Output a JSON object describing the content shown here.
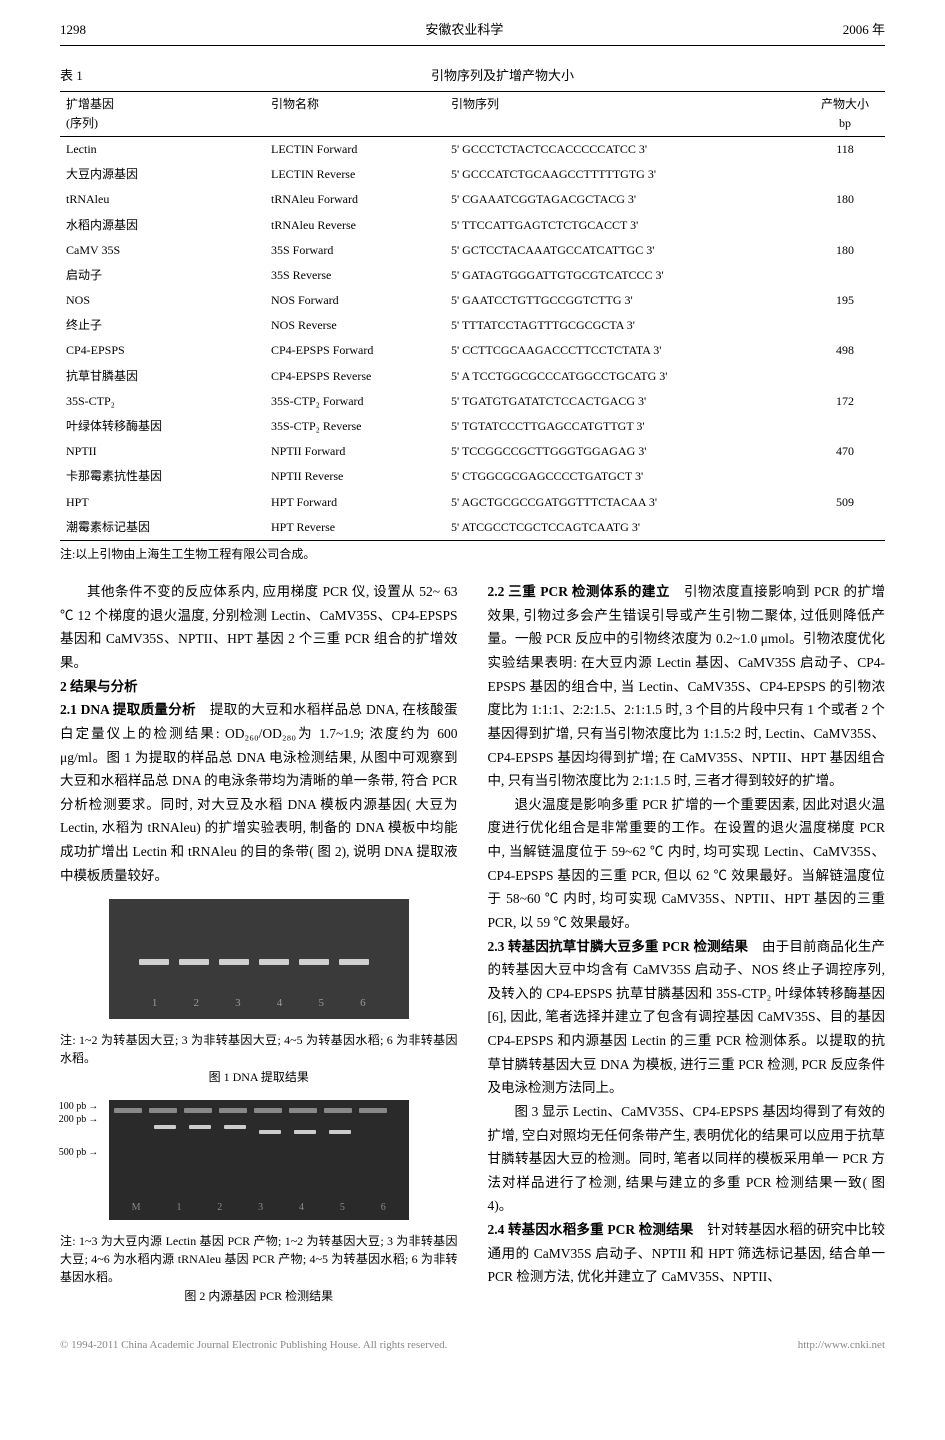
{
  "header": {
    "page_num": "1298",
    "journal": "安徽农业科学",
    "year": "2006 年"
  },
  "table1": {
    "label": "表 1",
    "caption": "引物序列及扩增产物大小",
    "columns": {
      "gene": "扩增基因\n(序列)",
      "primer": "引物名称",
      "seq": "引物序列",
      "size": "产物大小\nbp"
    },
    "rows": [
      {
        "gene": "Lectin",
        "primer": "LECTIN Forward",
        "seq": "5' GCCCTCTACTCCACCCCCATCC 3'",
        "size": "118"
      },
      {
        "gene": "大豆内源基因",
        "primer": "LECTIN Reverse",
        "seq": "5' GCCCATCTGCAAGCCTTTTTGTG 3'",
        "size": ""
      },
      {
        "gene": "tRNAleu",
        "primer": "tRNAleu Forward",
        "seq": "5' CGAAATCGGTAGACGCTACG 3'",
        "size": "180"
      },
      {
        "gene": "水稻内源基因",
        "primer": "tRNAleu Reverse",
        "seq": "5' TTCCATTGAGTCTCTGCACCT 3'",
        "size": ""
      },
      {
        "gene": "CaMV 35S",
        "primer": "35S Forward",
        "seq": "5' GCTCCTACAAATGCCATCATTGC 3'",
        "size": "180"
      },
      {
        "gene": "启动子",
        "primer": "35S Reverse",
        "seq": "5' GATAGTGGGATTGTGCGTCATCCC 3'",
        "size": ""
      },
      {
        "gene": "NOS",
        "primer": "NOS Forward",
        "seq": "5' GAATCCTGTTGCCGGTCTTG 3'",
        "size": "195"
      },
      {
        "gene": "终止子",
        "primer": "NOS Reverse",
        "seq": "5' TTTATCCTAGTTTGCGCGCTA 3'",
        "size": ""
      },
      {
        "gene": "CP4-EPSPS",
        "primer": "CP4-EPSPS Forward",
        "seq": "5' CCTTCGCAAGACCCTTCCTCTATA 3'",
        "size": "498"
      },
      {
        "gene": "抗草甘膦基因",
        "primer": "CP4-EPSPS Reverse",
        "seq": "5' A TCCTGGCGCCCATGGCCTGCATG 3'",
        "size": ""
      },
      {
        "gene": "35S-CTP₂",
        "primer": "35S-CTP₂ Forward",
        "seq": "5' TGATGTGATATCTCCACTGACG 3'",
        "size": "172"
      },
      {
        "gene": "叶绿体转移酶基因",
        "primer": "35S-CTP₂ Reverse",
        "seq": "5' TGTATCCCTTGAGCCATGTTGT 3'",
        "size": ""
      },
      {
        "gene": "NPTII",
        "primer": "NPTII Forward",
        "seq": "5' TCCGGCCGCTTGGGTGGAGAG 3'",
        "size": "470"
      },
      {
        "gene": "卡那霉素抗性基因",
        "primer": "NPTII Reverse",
        "seq": "5' CTGGCGCGAGCCCCTGATGCT 3'",
        "size": ""
      },
      {
        "gene": "HPT",
        "primer": "HPT Forward",
        "seq": "5' AGCTGCGCCGATGGTTTCTACAA 3'",
        "size": "509"
      },
      {
        "gene": "潮霉素标记基因",
        "primer": "HPT Reverse",
        "seq": "5' ATCGCCTCGCTCCAGTCAATG 3'",
        "size": ""
      }
    ],
    "note": "注:以上引物由上海生工生物工程有限公司合成。"
  },
  "left_col": {
    "p1": "其他条件不变的反应体系内, 应用梯度 PCR 仪, 设置从 52~ 63 ℃ 12 个梯度的退火温度, 分别检测 Lectin、CaMV35S、CP4-EPSPS 基因和 CaMV35S、NPTII、HPT 基因 2 个三重 PCR 组合的扩增效果。",
    "sec2": "2  结果与分析",
    "sec21_title": "2.1  DNA 提取质量分析",
    "sec21_body": "提取的大豆和水稻样品总 DNA, 在核酸蛋白定量仪上的检测结果: OD₂₆₀/OD₂₈₀为 1.7~1.9; 浓度约为 600 μg/ml。图 1 为提取的样品总 DNA 电泳检测结果, 从图中可观察到大豆和水稻样品总 DNA 的电泳条带均为清晰的单一条带, 符合 PCR 分析检测要求。同时, 对大豆及水稻 DNA 模板内源基因( 大豆为 Lectin, 水稻为 tRNAleu) 的扩增实验表明, 制备的 DNA 模板中均能成功扩增出 Lectin 和 tRNAleu 的目的条带( 图 2), 说明 DNA 提取液中模板质量较好。",
    "fig1_note": "注: 1~2 为转基因大豆; 3 为非转基因大豆; 4~5 为转基因水稻; 6 为非转基因水稻。",
    "fig1_caption": "图 1  DNA 提取结果",
    "gel2_markers": {
      "m1": "100 pb",
      "m2": "200 pb",
      "m3": "500 pb"
    },
    "gel2_lanes": {
      "l1": "M",
      "l2": "1",
      "l3": "2",
      "l4": "3",
      "l5": "4",
      "l6": "5",
      "l7": "6"
    },
    "fig2_note": "注: 1~3 为大豆内源 Lectin 基因 PCR 产物; 1~2 为转基因大豆; 3 为非转基因大豆; 4~6 为水稻内源 tRNAleu 基因 PCR 产物; 4~5 为转基因水稻; 6 为非转基因水稻。",
    "fig2_caption": "图 2  内源基因 PCR 检测结果"
  },
  "right_col": {
    "sec22_title": "2.2  三重 PCR 检测体系的建立",
    "sec22_body": "引物浓度直接影响到 PCR 的扩增效果, 引物过多会产生错误引导或产生引物二聚体, 过低则降低产量。一般 PCR 反应中的引物终浓度为 0.2~1.0 μmol。引物浓度优化实验结果表明: 在大豆内源 Lectin 基因、CaMV35S 启动子、CP4-EPSPS 基因的组合中, 当 Lectin、CaMV35S、CP4-EPSPS 的引物浓度比为 1:1:1、2:2:1.5、2:1:1.5 时, 3 个目的片段中只有 1 个或者 2 个基因得到扩增, 只有当引物浓度比为 1:1.5:2 时, Lectin、CaMV35S、CP4-EPSPS 基因均得到扩增; 在 CaMV35S、NPTII、HPT 基因组合中, 只有当引物浓度比为 2:1:1.5 时, 三者才得到较好的扩增。",
    "sec22_p2": "退火温度是影响多重 PCR 扩增的一个重要因素, 因此对退火温度进行优化组合是非常重要的工作。在设置的退火温度梯度 PCR 中, 当解链温度位于 59~62 ℃ 内时, 均可实现 Lectin、CaMV35S、CP4-EPSPS 基因的三重 PCR, 但以 62 ℃ 效果最好。当解链温度位于 58~60 ℃ 内时, 均可实现 CaMV35S、NPTII、HPT 基因的三重 PCR, 以 59 ℃ 效果最好。",
    "sec23_title": "2.3  转基因抗草甘膦大豆多重 PCR 检测结果",
    "sec23_body": "由于目前商品化生产的转基因大豆中均含有 CaMV35S 启动子、NOS 终止子调控序列, 及转入的 CP4-EPSPS 抗草甘膦基因和 35S-CTP₂ 叶绿体转移酶基因[6], 因此, 笔者选择并建立了包含有调控基因 CaMV35S、目的基因 CP4-EPSPS 和内源基因 Lectin 的三重 PCR 检测体系。以提取的抗草甘膦转基因大豆 DNA 为模板, 进行三重 PCR 检测, PCR 反应条件及电泳检测方法同上。",
    "sec23_p2": "图 3 显示 Lectin、CaMV35S、CP4-EPSPS 基因均得到了有效的扩增, 空白对照均无任何条带产生, 表明优化的结果可以应用于抗草甘膦转基因大豆的检测。同时, 笔者以同样的模板采用单一 PCR 方法对样品进行了检测, 结果与建立的多重 PCR 检测结果一致( 图 4)。",
    "sec24_title": "2.4  转基因水稻多重 PCR 检测结果",
    "sec24_body": "针对转基因水稻的研究中比较通用的 CaMV35S 启动子、NPTII 和 HPT 筛选标记基因, 结合单一 PCR 检测方法, 优化并建立了 CaMV35S、NPTII、"
  },
  "footer": {
    "left": "© 1994-2011 China Academic Journal Electronic Publishing House. All rights reserved.",
    "right": "http://www.cnki.net"
  },
  "lane_labels_fig1": {
    "l1": "1",
    "l2": "2",
    "l3": "3",
    "l4": "4",
    "l5": "5",
    "l6": "6"
  }
}
